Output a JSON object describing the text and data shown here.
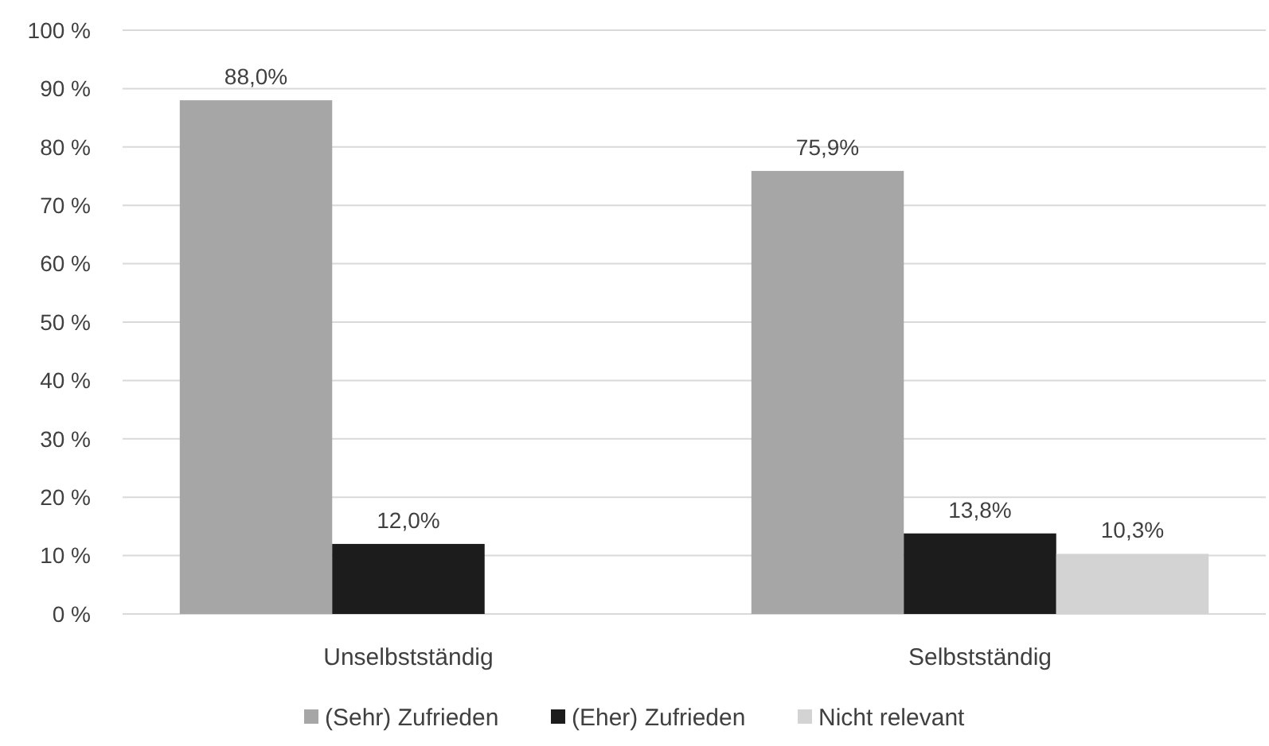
{
  "chart_data": {
    "type": "bar",
    "categories": [
      "Unselbstständig",
      "Selbstständig"
    ],
    "series": [
      {
        "name": "(Sehr) Zufrieden",
        "color": "#a6a6a6",
        "values": [
          88.0,
          75.9
        ],
        "value_labels": [
          "88,0%",
          "75,9%"
        ]
      },
      {
        "name": "(Eher) Zufrieden",
        "color": "#1c1c1c",
        "values": [
          12.0,
          13.8
        ],
        "value_labels": [
          "12,0%",
          "13,8%"
        ]
      },
      {
        "name": "Nicht relevant",
        "color": "#d3d3d3",
        "values": [
          null,
          10.3
        ],
        "value_labels": [
          null,
          "10,3%"
        ]
      }
    ],
    "ylim": [
      0,
      100
    ],
    "yticks": [
      {
        "value": 0,
        "label": "0 %"
      },
      {
        "value": 10,
        "label": "10 %"
      },
      {
        "value": 20,
        "label": "20 %"
      },
      {
        "value": 30,
        "label": "30 %"
      },
      {
        "value": 40,
        "label": "40 %"
      },
      {
        "value": 50,
        "label": "50 %"
      },
      {
        "value": 60,
        "label": "60 %"
      },
      {
        "value": 70,
        "label": "70 %"
      },
      {
        "value": 80,
        "label": "80 %"
      },
      {
        "value": 90,
        "label": "90 %"
      },
      {
        "value": 100,
        "label": "100 %"
      }
    ],
    "grid": "y",
    "legend": "bottom"
  }
}
